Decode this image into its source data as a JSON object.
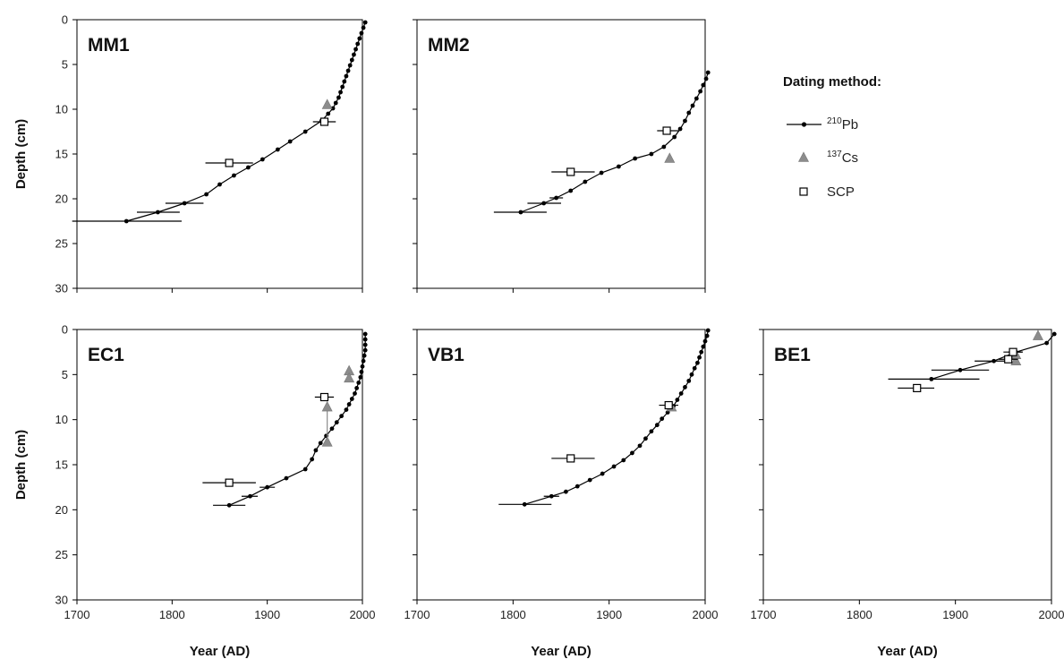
{
  "colors": {
    "pb": "#000000",
    "cs": "#8c8c8c",
    "scp_fill": "#ffffff",
    "scp_stroke": "#000000"
  },
  "legend": {
    "title": "Dating method:",
    "entries": [
      {
        "mass": "210",
        "element": "Pb",
        "marker": "line-dot"
      },
      {
        "mass": "137",
        "element": "Cs",
        "marker": "triangle"
      },
      {
        "mass": "",
        "element": "SCP",
        "marker": "square"
      }
    ]
  },
  "chart_data": [
    {
      "type": "scatter",
      "panel": "MM1",
      "xlabel": "",
      "ylabel": "Depth (cm)",
      "xlim": [
        1700,
        2000
      ],
      "ylim": [
        30,
        0
      ],
      "xticks": [],
      "yticks": [
        "0",
        "5",
        "10",
        "15",
        "20",
        "25",
        "30"
      ],
      "pb": [
        [
          2003,
          0.3
        ],
        [
          2001,
          0.9
        ],
        [
          1999,
          1.5
        ],
        [
          1997,
          2.1
        ],
        [
          1995,
          2.7
        ],
        [
          1993,
          3.3
        ],
        [
          1991,
          3.9
        ],
        [
          1989,
          4.5
        ],
        [
          1987,
          5.1
        ],
        [
          1985,
          5.7
        ],
        [
          1983,
          6.3
        ],
        [
          1981,
          6.9
        ],
        [
          1979,
          7.5
        ],
        [
          1977,
          8.1
        ],
        [
          1975,
          8.7
        ],
        [
          1972,
          9.3
        ],
        [
          1969,
          9.9
        ],
        [
          1964,
          10.5
        ],
        [
          1957,
          11.3
        ],
        [
          1940,
          12.5
        ],
        [
          1924,
          13.6
        ],
        [
          1911,
          14.5
        ],
        [
          1895,
          15.6
        ],
        [
          1880,
          16.5
        ],
        [
          1865,
          17.4
        ],
        [
          1850,
          18.4
        ],
        [
          1836,
          19.5
        ],
        [
          1813,
          20.5
        ],
        [
          1785,
          21.5
        ],
        [
          1752,
          22.5
        ]
      ],
      "pb_err": [
        [
          1813,
          1793,
          1833
        ],
        [
          1785,
          1763,
          1808
        ],
        [
          1752,
          1695,
          1810
        ]
      ],
      "cs": [
        [
          1963,
          9.5
        ]
      ],
      "scp": [
        [
          1860,
          16.0,
          1835,
          1885
        ],
        [
          1960,
          11.4,
          1948,
          1972
        ]
      ]
    },
    {
      "type": "scatter",
      "panel": "MM2",
      "xlabel": "",
      "ylabel": "",
      "xlim": [
        1700,
        2000
      ],
      "ylim": [
        30,
        0
      ],
      "xticks": [],
      "yticks": [],
      "pb": [
        [
          2003,
          5.9
        ],
        [
          2001,
          6.6
        ],
        [
          1998,
          7.3
        ],
        [
          1995,
          8.0
        ],
        [
          1991,
          8.8
        ],
        [
          1987,
          9.6
        ],
        [
          1983,
          10.4
        ],
        [
          1979,
          11.3
        ],
        [
          1974,
          12.2
        ],
        [
          1968,
          13.1
        ],
        [
          1957,
          14.2
        ],
        [
          1944,
          15.0
        ],
        [
          1927,
          15.5
        ],
        [
          1910,
          16.4
        ],
        [
          1892,
          17.1
        ],
        [
          1875,
          18.1
        ],
        [
          1860,
          19.1
        ],
        [
          1845,
          19.9
        ],
        [
          1832,
          20.5
        ],
        [
          1808,
          21.5
        ]
      ],
      "pb_err": [
        [
          1845,
          1838,
          1852
        ],
        [
          1832,
          1815,
          1850
        ],
        [
          1808,
          1780,
          1835
        ]
      ],
      "cs": [
        [
          1963,
          15.5
        ]
      ],
      "scp": [
        [
          1860,
          17.0,
          1840,
          1885
        ],
        [
          1960,
          12.4,
          1950,
          1972
        ]
      ]
    },
    {
      "type": "scatter",
      "panel": "EC1",
      "xlabel": "Year (AD)",
      "ylabel": "Depth (cm)",
      "xlim": [
        1700,
        2000
      ],
      "ylim": [
        30,
        0
      ],
      "xticks": [
        "1700",
        "1800",
        "1900",
        "2000"
      ],
      "yticks": [
        "0",
        "5",
        "10",
        "15",
        "20",
        "25",
        "30"
      ],
      "pb": [
        [
          2003,
          0.5
        ],
        [
          2003,
          1.1
        ],
        [
          2003,
          1.7
        ],
        [
          2003,
          2.3
        ],
        [
          2002,
          2.9
        ],
        [
          2001,
          3.5
        ],
        [
          2000,
          4.1
        ],
        [
          1999,
          4.7
        ],
        [
          1998,
          5.3
        ],
        [
          1996,
          5.9
        ],
        [
          1994,
          6.5
        ],
        [
          1992,
          7.1
        ],
        [
          1989,
          7.7
        ],
        [
          1986,
          8.3
        ],
        [
          1983,
          8.9
        ],
        [
          1978,
          9.6
        ],
        [
          1973,
          10.3
        ],
        [
          1968,
          11.0
        ],
        [
          1962,
          11.8
        ],
        [
          1956,
          12.6
        ],
        [
          1951,
          13.4
        ],
        [
          1947,
          14.4
        ],
        [
          1940,
          15.5
        ],
        [
          1920,
          16.5
        ],
        [
          1900,
          17.5
        ],
        [
          1882,
          18.5
        ],
        [
          1860,
          19.5
        ]
      ],
      "pb_err": [
        [
          1900,
          1892,
          1908
        ],
        [
          1882,
          1873,
          1890
        ],
        [
          1860,
          1843,
          1877
        ]
      ],
      "cs": [
        [
          1986,
          4.6
        ],
        [
          1986,
          5.4
        ],
        [
          1963,
          8.6
        ],
        [
          1963,
          12.5
        ]
      ],
      "scp": [
        [
          1860,
          17.0,
          1832,
          1888
        ],
        [
          1960,
          7.5,
          1950,
          1970
        ]
      ]
    },
    {
      "type": "scatter",
      "panel": "VB1",
      "xlabel": "Year (AD)",
      "ylabel": "",
      "xlim": [
        1700,
        2000
      ],
      "ylim": [
        30,
        0
      ],
      "xticks": [
        "1700",
        "1800",
        "1900",
        "2000"
      ],
      "yticks": [],
      "pb": [
        [
          2003,
          0.1
        ],
        [
          2002,
          0.7
        ],
        [
          2000,
          1.3
        ],
        [
          1998,
          1.9
        ],
        [
          1996,
          2.5
        ],
        [
          1994,
          3.1
        ],
        [
          1992,
          3.7
        ],
        [
          1989,
          4.3
        ],
        [
          1986,
          5.0
        ],
        [
          1983,
          5.7
        ],
        [
          1979,
          6.4
        ],
        [
          1975,
          7.1
        ],
        [
          1971,
          7.8
        ],
        [
          1967,
          8.5
        ],
        [
          1961,
          9.2
        ],
        [
          1955,
          9.9
        ],
        [
          1950,
          10.6
        ],
        [
          1944,
          11.3
        ],
        [
          1938,
          12.1
        ],
        [
          1932,
          12.9
        ],
        [
          1924,
          13.7
        ],
        [
          1915,
          14.5
        ],
        [
          1905,
          15.2
        ],
        [
          1893,
          16.0
        ],
        [
          1880,
          16.7
        ],
        [
          1867,
          17.4
        ],
        [
          1855,
          18.0
        ],
        [
          1840,
          18.5
        ],
        [
          1812,
          19.4
        ]
      ],
      "pb_err": [
        [
          1840,
          1832,
          1848
        ],
        [
          1812,
          1785,
          1840
        ]
      ],
      "cs": [
        [
          1965,
          8.6
        ]
      ],
      "scp": [
        [
          1860,
          14.3,
          1840,
          1885
        ],
        [
          1962,
          8.4,
          1952,
          1972
        ]
      ]
    },
    {
      "type": "scatter",
      "panel": "BE1",
      "xlabel": "Year (AD)",
      "ylabel": "",
      "xlim": [
        1700,
        2000
      ],
      "ylim": [
        30,
        0
      ],
      "xticks": [
        "1700",
        "1800",
        "1900",
        "2000"
      ],
      "yticks": [],
      "pb": [
        [
          2003,
          0.5
        ],
        [
          1995,
          1.5
        ],
        [
          1963,
          2.5
        ],
        [
          1940,
          3.5
        ],
        [
          1905,
          4.5
        ],
        [
          1875,
          5.5
        ]
      ],
      "pb_err": [
        [
          1963,
          1955,
          1970
        ],
        [
          1940,
          1920,
          1958
        ],
        [
          1905,
          1875,
          1935
        ],
        [
          1875,
          1830,
          1925
        ]
      ],
      "cs": [
        [
          1986,
          0.7
        ],
        [
          1963,
          3.5
        ],
        [
          1963,
          2.8
        ]
      ],
      "scp": [
        [
          1860,
          6.5,
          1840,
          1878
        ],
        [
          1960,
          2.5,
          1950,
          1970
        ],
        [
          1955,
          3.3,
          1945,
          1965
        ]
      ]
    }
  ]
}
